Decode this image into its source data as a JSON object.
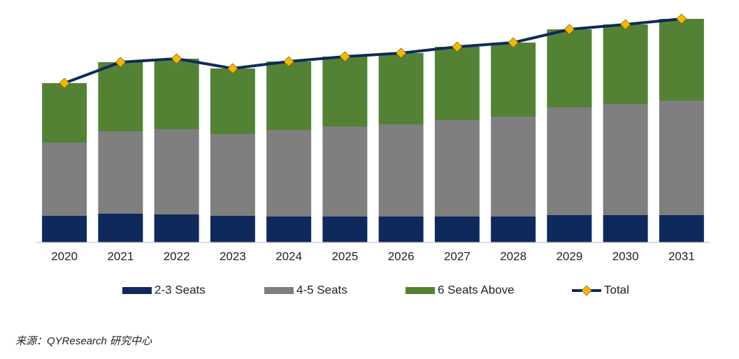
{
  "chart_data": {
    "type": "bar",
    "stacked": true,
    "categories": [
      "2020",
      "2021",
      "2022",
      "2023",
      "2024",
      "2025",
      "2026",
      "2027",
      "2028",
      "2029",
      "2030",
      "2031"
    ],
    "series": [
      {
        "name": "2-3 Seats",
        "color": "#0e2a5c",
        "values": [
          38,
          41,
          40,
          38,
          37,
          37,
          37,
          37,
          37,
          39,
          39,
          39
        ]
      },
      {
        "name": "4-5 Seats",
        "color": "#7f7f7f",
        "values": [
          105,
          118,
          122,
          117,
          124,
          129,
          132,
          138,
          143,
          154,
          159,
          164
        ]
      },
      {
        "name": "6 Seats Above",
        "color": "#548235",
        "values": [
          85,
          99,
          101,
          94,
          98,
          100,
          102,
          105,
          106,
          112,
          114,
          117
        ]
      },
      {
        "name": "Total",
        "type": "line",
        "color": "#0e2a5c",
        "marker_color": "#f5b800",
        "values": [
          228,
          258,
          263,
          249,
          259,
          266,
          271,
          280,
          286,
          305,
          312,
          320
        ]
      }
    ],
    "ylim": [
      0,
      330
    ],
    "source": "来源：QYResearch  研究中心"
  }
}
